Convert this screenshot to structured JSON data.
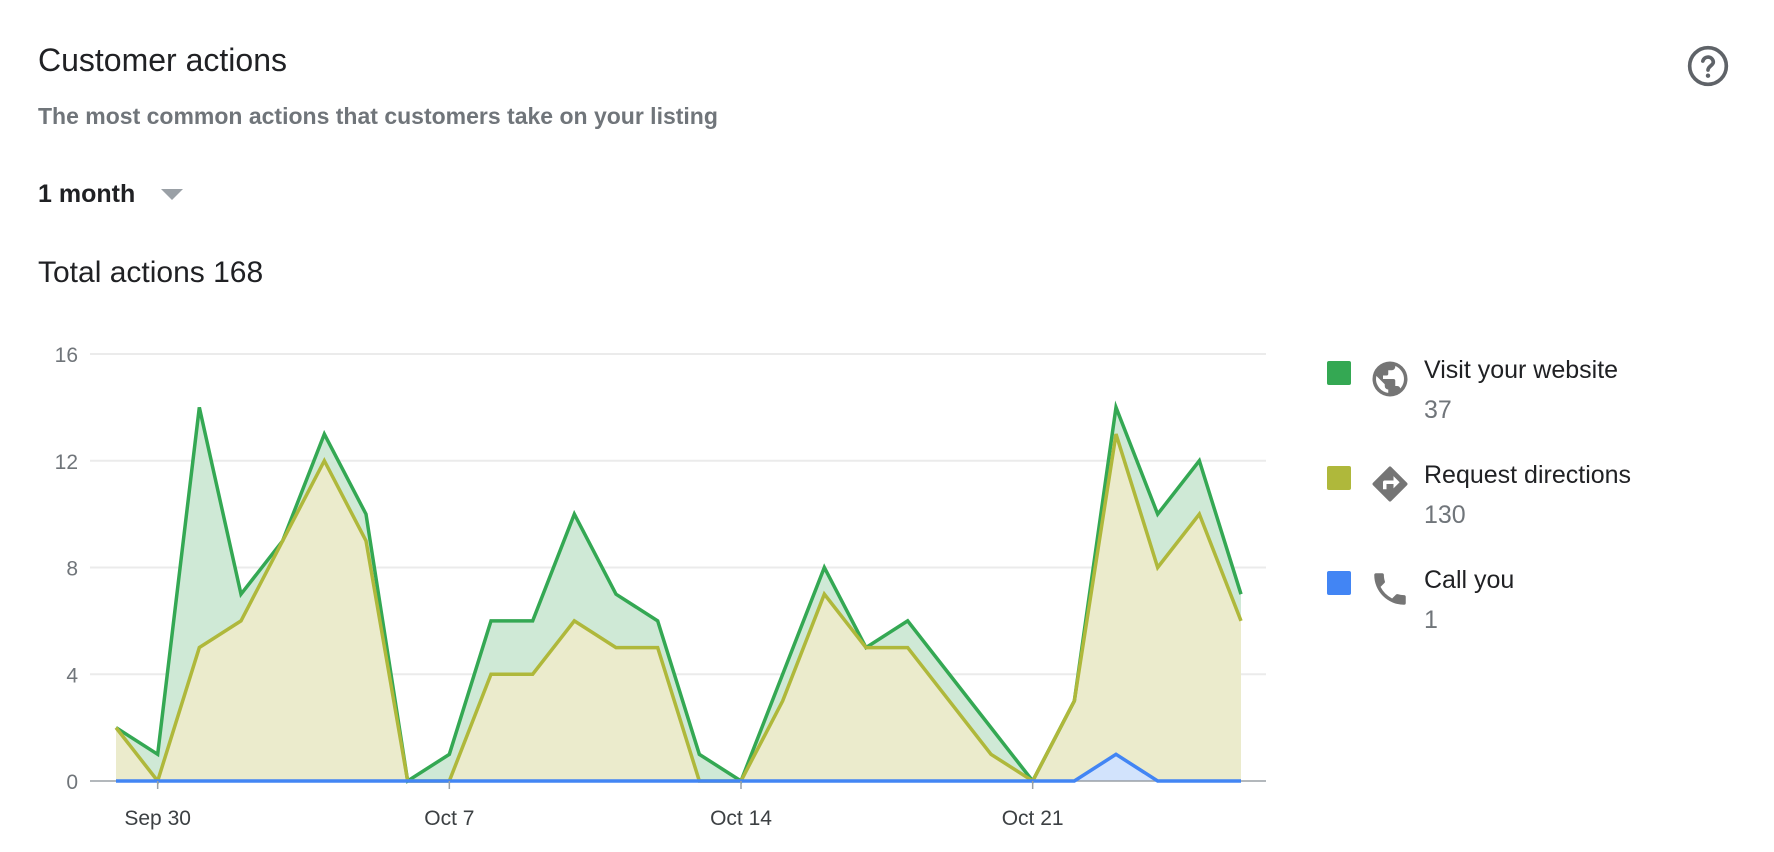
{
  "header": {
    "title": "Customer actions",
    "subtitle": "The most common actions that customers take on your listing",
    "help_icon": "help-circle-icon"
  },
  "range_selector": {
    "selected": "1 month"
  },
  "total": {
    "label": "Total actions 168"
  },
  "legend": [
    {
      "label": "Visit your website",
      "value": "37",
      "color": "#34a853",
      "icon": "globe-icon"
    },
    {
      "label": "Request directions",
      "value": "130",
      "color": "#afb83b",
      "icon": "directions-icon"
    },
    {
      "label": "Call you",
      "value": "1",
      "color": "#4285f4",
      "icon": "phone-icon"
    }
  ],
  "chart_data": {
    "type": "area",
    "stacked": true,
    "x": [
      "Sep 29",
      "Sep 30",
      "Oct 1",
      "Oct 2",
      "Oct 3",
      "Oct 4",
      "Oct 5",
      "Oct 6",
      "Oct 7",
      "Oct 8",
      "Oct 9",
      "Oct 10",
      "Oct 11",
      "Oct 12",
      "Oct 13",
      "Oct 14",
      "Oct 15",
      "Oct 16",
      "Oct 17",
      "Oct 18",
      "Oct 19",
      "Oct 20",
      "Oct 21",
      "Oct 22",
      "Oct 23",
      "Oct 24",
      "Oct 25",
      "Oct 26"
    ],
    "xticks": [
      "Sep 30",
      "Oct 7",
      "Oct 14",
      "Oct 21"
    ],
    "yticks": [
      0,
      4,
      8,
      12,
      16
    ],
    "ylim": [
      0,
      16
    ],
    "grid": true,
    "legend_position": "right",
    "series": [
      {
        "name": "Call you",
        "color": "#4285f4",
        "fill": "#d2e3fc",
        "values": [
          0,
          0,
          0,
          0,
          0,
          0,
          0,
          0,
          0,
          0,
          0,
          0,
          0,
          0,
          0,
          0,
          0,
          0,
          0,
          0,
          0,
          0,
          0,
          0,
          1,
          0,
          0,
          0
        ]
      },
      {
        "name": "Request directions",
        "color": "#afb83b",
        "fill": "#ebebcc",
        "values": [
          2,
          0,
          5,
          6,
          9,
          12,
          9,
          0,
          0,
          4,
          4,
          6,
          5,
          5,
          0,
          0,
          3,
          7,
          5,
          5,
          3,
          1,
          0,
          3,
          12,
          8,
          10,
          6
        ]
      },
      {
        "name": "Visit your website",
        "color": "#34a853",
        "fill": "#cfe9d6",
        "values": [
          0,
          1,
          9,
          1,
          0,
          1,
          1,
          0,
          1,
          2,
          2,
          4,
          2,
          1,
          1,
          0,
          1,
          1,
          0,
          1,
          1,
          1,
          0,
          0,
          1,
          2,
          2,
          1
        ]
      }
    ]
  }
}
